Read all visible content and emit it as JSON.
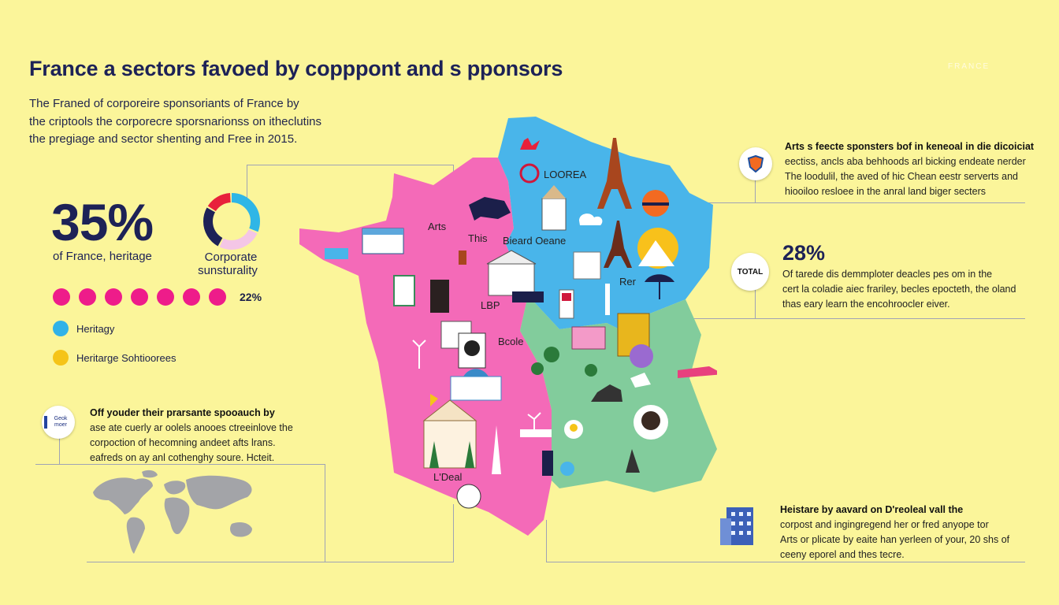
{
  "header": {
    "title": "France a sectors favoed by copppont and s pponsors",
    "brand_tag": "FRANCE"
  },
  "intro": {
    "lines": [
      "The Franed of corporeire sponsoriants of France by",
      "the criptools the corporecre sporsnarionss on itheclutins",
      "the pregiage and sector shenting and Free in 2015."
    ]
  },
  "stats": {
    "heritage_pct": "35%",
    "heritage_caption": "of France, heritage",
    "corporate_caption_1": "Corporate",
    "corporate_caption_2": "sunsturality",
    "dots_label": "22%",
    "dots_count": 7,
    "ring_segments": [
      {
        "color": "#2fb6e6",
        "share": 0.32
      },
      {
        "color": "#f4c6e6",
        "share": 0.26
      },
      {
        "color": "#1d2257",
        "share": 0.26
      },
      {
        "color": "#e8213b",
        "share": 0.16
      }
    ]
  },
  "legend": [
    {
      "label": "Heritagy",
      "color": "#31b2e8"
    },
    {
      "label": "Heritarge Sohtioorees",
      "color": "#f5c418"
    }
  ],
  "left_note": {
    "badge_text": "Geok moer",
    "lines": [
      "Off youder their prarsante spooauch by",
      "ase ate cuerly ar oolels anooes ctreeinlove the",
      "corpoction of hecomning andeet afts lrans.",
      "eafreds on ay anl cothenghy soure. Hcteit."
    ]
  },
  "right_top": {
    "lines": [
      "Arts s feecte sponsters bof in keneoal in die dicoiciat",
      "eectiss, ancls aba behhoods arl bicking endeate nerder",
      "The loodulil, the aved of hic Chean eestr serverts and",
      "hiooiloo resloee in the anral land biger secters"
    ]
  },
  "right_mid": {
    "badge": "TOTAL",
    "pct": "28%",
    "lines": [
      "Of tarede dis demmploter deacles pes om in the",
      "cert la coladie aiec frariley, becles epocteth, the oland",
      "thas eary learn the encohroocler eiver."
    ]
  },
  "right_bottom": {
    "lines": [
      "Heistare by aavard on D'reoleal vall the",
      "corpost and ingingregend her or fred anyope tor",
      "Arts or plicate by eaite han yerleen of your, 20 shs of",
      "ceeny eporel and thes tecre."
    ]
  },
  "map": {
    "labels": {
      "arts": "Arts",
      "loreal": "LOOREA",
      "rer": "Rer",
      "this": "This",
      "bcole": "Bcole",
      "bieard": "Bieard Oeane",
      "loel": "L'Deal",
      "lbp": "LBP"
    },
    "region_colors": {
      "west": "#f46ab8",
      "northeast": "#49b5ea",
      "southeast": "#82cc9c"
    }
  }
}
